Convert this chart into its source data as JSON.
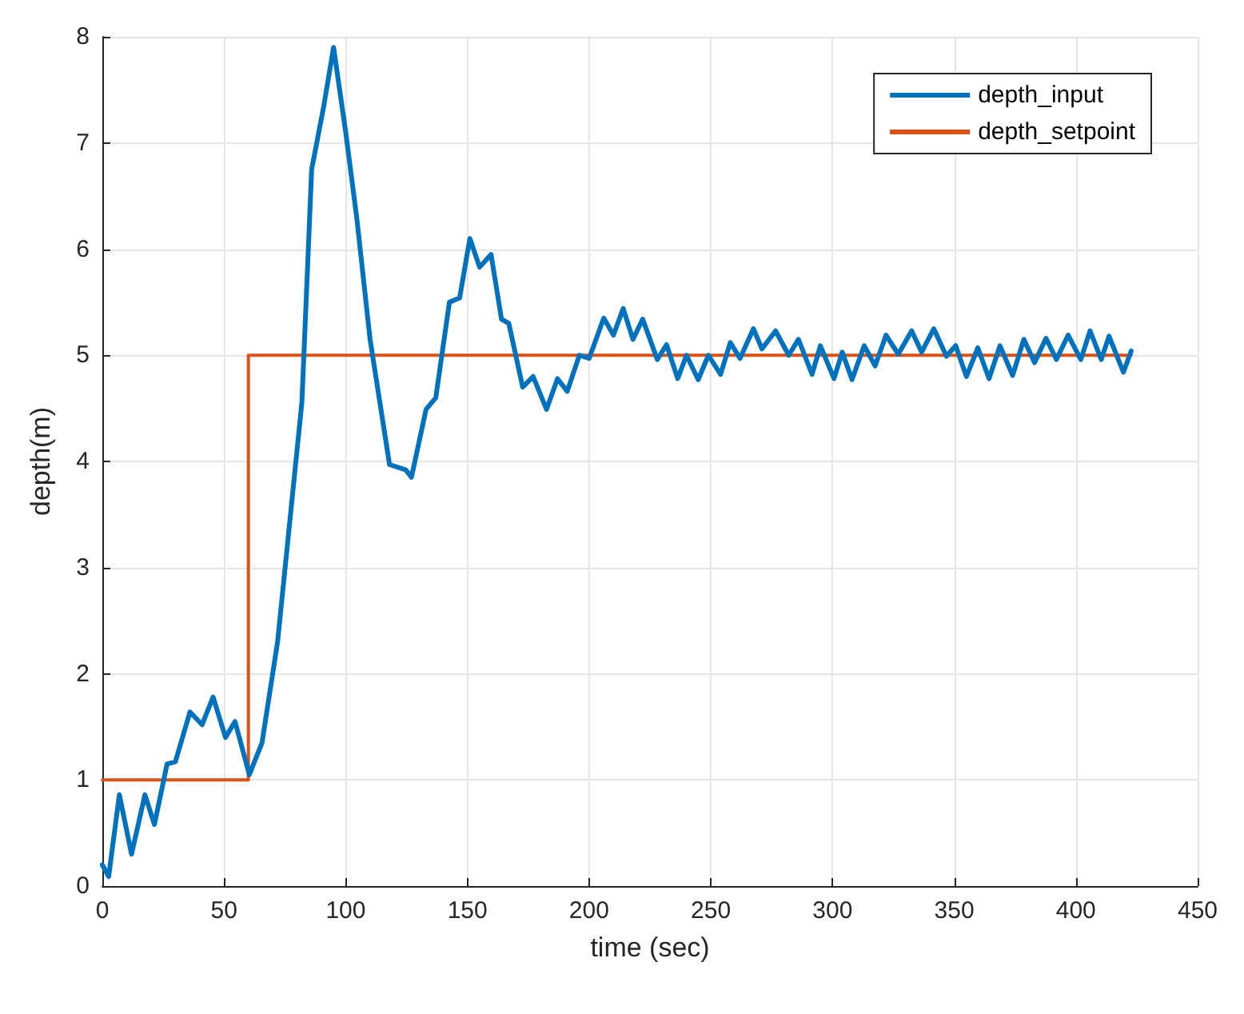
{
  "chart_data": {
    "type": "line",
    "xlabel": "time (sec)",
    "ylabel": "depth(m)",
    "xlim": [
      0,
      450
    ],
    "ylim": [
      0,
      8
    ],
    "xticks": [
      0,
      50,
      100,
      150,
      200,
      250,
      300,
      350,
      400,
      450
    ],
    "yticks": [
      0,
      1,
      2,
      3,
      4,
      5,
      6,
      7,
      8
    ],
    "grid": true,
    "legend": "top right",
    "marker": "none",
    "line_style": "solid",
    "series": [
      {
        "name": "depth_input",
        "color": "#0072bd",
        "x": [
          0,
          2.6,
          7,
          12,
          17.5,
          21.4,
          26.6,
          30,
          36,
          41,
          45.5,
          50.6,
          54.5,
          60.4,
          65.6,
          72,
          82,
          86,
          91,
          95,
          100,
          104.5,
          110,
          118,
          124.7,
          127,
          133,
          137,
          142.6,
          146.8,
          151,
          155,
          159.7,
          164,
          167,
          172.7,
          177,
          182.5,
          187,
          191,
          196,
          200,
          206,
          210,
          214,
          218,
          222,
          228,
          231.8,
          236.4,
          240,
          244.8,
          249,
          254,
          258,
          262,
          267.5,
          271,
          276.6,
          282,
          286,
          291.6,
          295,
          300.6,
          304,
          308,
          313,
          317.5,
          322,
          327,
          332.5,
          336.6,
          341.6,
          346.8,
          350.6,
          355,
          359.7,
          364.3,
          368.8,
          374,
          378.6,
          383,
          387.7,
          392,
          396.8,
          402,
          405.8,
          410.4,
          413.6,
          419.5,
          422.7
        ],
        "values": [
          0.2,
          0.09,
          0.86,
          0.3,
          0.86,
          0.58,
          1.15,
          1.17,
          1.64,
          1.52,
          1.78,
          1.4,
          1.55,
          1.05,
          1.35,
          2.3,
          4.56,
          6.75,
          7.35,
          7.9,
          7.1,
          6.3,
          5.15,
          3.97,
          3.92,
          3.85,
          4.49,
          4.6,
          5.5,
          5.54,
          6.1,
          5.83,
          5.95,
          5.34,
          5.3,
          4.7,
          4.8,
          4.49,
          4.78,
          4.66,
          5.0,
          4.97,
          5.35,
          5.19,
          5.44,
          5.15,
          5.34,
          4.96,
          5.1,
          4.78,
          5.0,
          4.77,
          5.0,
          4.82,
          5.12,
          4.97,
          5.25,
          5.06,
          5.23,
          5.0,
          5.15,
          4.82,
          5.09,
          4.78,
          5.03,
          4.77,
          5.09,
          4.9,
          5.19,
          5.01,
          5.23,
          5.03,
          5.25,
          4.99,
          5.09,
          4.8,
          5.07,
          4.78,
          5.09,
          4.81,
          5.15,
          4.93,
          5.16,
          4.96,
          5.19,
          4.96,
          5.23,
          4.96,
          5.18,
          4.84,
          5.04
        ]
      },
      {
        "name": "depth_setpoint",
        "color": "#d95319",
        "x": [
          0,
          60,
          60,
          422.7
        ],
        "values": [
          1,
          1,
          5,
          5
        ]
      }
    ]
  }
}
